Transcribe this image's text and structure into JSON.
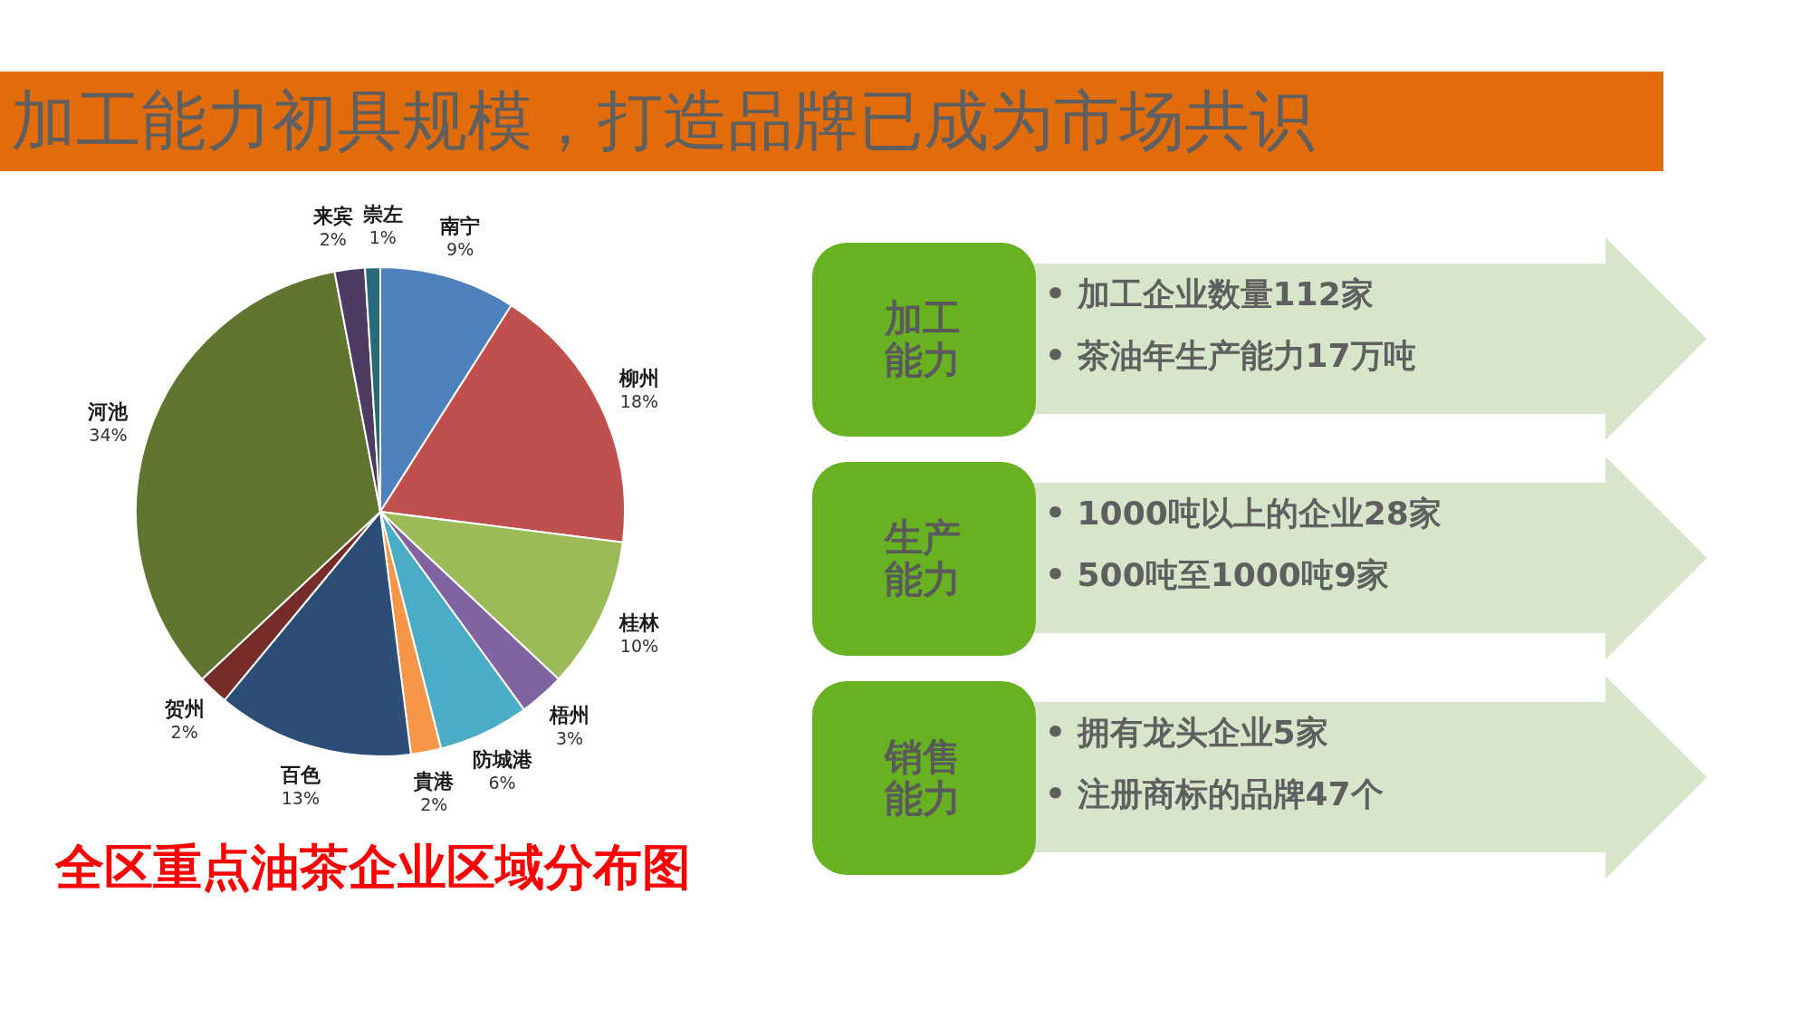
{
  "chart_data": [
    {
      "type": "pie",
      "title": "加工能力初具规模，打造品牌已成为市场共识",
      "categories": [
        "南宁",
        "柳州",
        "桂林",
        "梧州",
        "防城港",
        "貴港",
        "百色",
        "贺州",
        "河池",
        "来宾",
        "崇左"
      ],
      "values": [
        9,
        18,
        10,
        3,
        6,
        2,
        13,
        2,
        34,
        2,
        1
      ],
      "value_labels": [
        "9%",
        "18%",
        "10%",
        "3%",
        "6%",
        "2%",
        "13%",
        "2%",
        "34%",
        "2%",
        "1%"
      ],
      "colors": [
        "#4f81bd",
        "#c0504d",
        "#9bbb59",
        "#8064a2",
        "#4bacc6",
        "#f79646",
        "#2c4d75",
        "#772c2a",
        "#5f7530",
        "#4d3b62",
        "#276a7c"
      ],
      "annotations": [
        "全区重点油茶企业区域分布图"
      ]
    },
    {
      "type": "other",
      "categories": [
        "加工能力",
        "生产能力",
        "销售能力"
      ],
      "annotations": [
        "• 加工企业数量112家",
        "• 茶油年生产能力17万吨",
        "• 1000吨以上的企业28家",
        "• 500吨至1000吨9家",
        "• 拥有龙头企业5家",
        "• 注册商标的品牌47个"
      ]
    }
  ]
}
